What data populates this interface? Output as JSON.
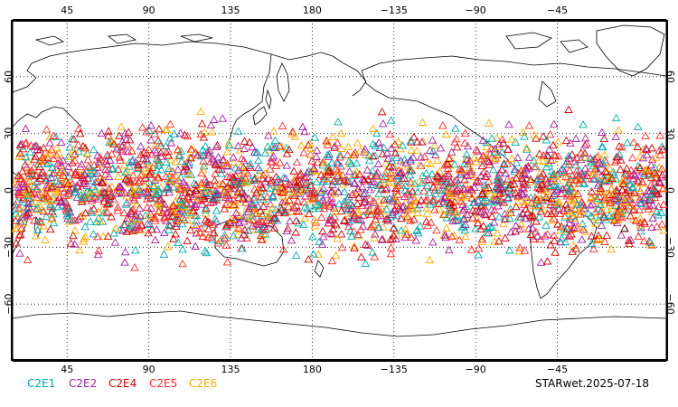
{
  "legend": [
    {
      "label": "C2E1",
      "color": "#00aaaa"
    },
    {
      "label": "C2E2",
      "color": "#a020a0"
    },
    {
      "label": "C2E4",
      "color": "#cc0000"
    },
    {
      "label": "C2E5",
      "color": "#ff2a2a"
    },
    {
      "label": "C2E6",
      "color": "#ffaa00"
    }
  ],
  "footer_text": "STARwet.2025-07-18",
  "map": {
    "projection": "cylindrical equidistant, centered on 150E",
    "lon_range": [
      15,
      375
    ],
    "lat_range": [
      -90,
      90
    ],
    "top_ticks": [
      "45",
      "90",
      "135",
      "180",
      "−135",
      "−90",
      "−45"
    ],
    "bottom_ticks": [
      "45",
      "90",
      "135",
      "180",
      "−135",
      "−90",
      "−45"
    ],
    "left_ticks": [
      "60",
      "30",
      "0",
      "−30",
      "−60"
    ],
    "right_ticks": [
      "60",
      "30",
      "0",
      "−30",
      "−60"
    ],
    "grid": "dotted every 45° longitude and 30° latitude",
    "marker": "open triangle",
    "observation_band_lat": [
      -45,
      45
    ]
  }
}
